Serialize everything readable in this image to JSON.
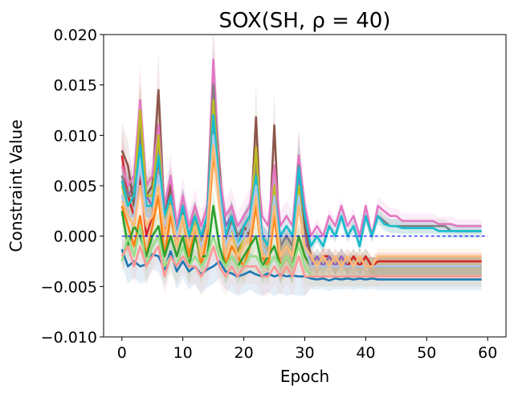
{
  "chart_data": {
    "type": "line",
    "title": "SOX(SH, ρ = 40)",
    "xlabel": "Epoch",
    "ylabel": "Constraint Value",
    "xlim": [
      -3,
      63
    ],
    "ylim": [
      -0.01,
      0.02
    ],
    "x_ticks": [
      0,
      10,
      20,
      30,
      40,
      50,
      60
    ],
    "y_ticks": [
      -0.01,
      -0.005,
      0.0,
      0.005,
      0.01,
      0.015,
      0.02
    ],
    "x_tick_labels": [
      "0",
      "10",
      "20",
      "30",
      "40",
      "50",
      "60"
    ],
    "y_tick_labels": [
      "−0.010",
      "−0.005",
      "0.000",
      "0.005",
      "0.010",
      "0.015",
      "0.020"
    ],
    "reference_line": {
      "y": 0.0,
      "style": "dashed",
      "color": "#0000ff"
    },
    "grid": false,
    "legend": "none",
    "epochs": {
      "start": 0,
      "end": 59
    },
    "series": [
      {
        "color": "#1f77b4",
        "values": [
          -0.0013,
          -0.003,
          -0.0025,
          -0.003,
          -0.0028,
          -0.0018,
          -0.002,
          -0.0033,
          -0.0015,
          -0.0035,
          -0.0025,
          -0.0035,
          -0.003,
          -0.0038,
          -0.0033,
          -0.003,
          -0.0025,
          -0.0035,
          -0.0037,
          -0.004,
          -0.0038,
          -0.0035,
          -0.0038,
          -0.004,
          -0.0037,
          -0.004,
          -0.0038,
          -0.004,
          -0.0039,
          -0.004,
          -0.004,
          -0.0042,
          -0.0043,
          -0.0042,
          -0.0044,
          -0.0042,
          -0.0043,
          -0.0042,
          -0.0043,
          -0.0042,
          -0.0043,
          -0.0042,
          -0.0043,
          -0.0043,
          -0.0043,
          -0.0043,
          -0.0043,
          -0.0043,
          -0.0043,
          -0.0043,
          -0.0043,
          -0.0043,
          -0.0043,
          -0.0043,
          -0.0043,
          -0.0043,
          -0.0043,
          -0.0043,
          -0.0043,
          -0.0043
        ]
      },
      {
        "color": "#ff7f0e",
        "values": [
          0.003,
          0.001,
          -0.001,
          0.002,
          -0.002,
          0.001,
          0.004,
          -0.002,
          0.002,
          -0.001,
          0.002,
          -0.002,
          0.001,
          -0.003,
          0.0,
          0.008,
          0.004,
          -0.003,
          -0.001,
          -0.002,
          -0.003,
          -0.001,
          0.003,
          -0.002,
          -0.003,
          0.002,
          -0.003,
          -0.002,
          -0.003,
          0.0,
          -0.002,
          -0.003,
          -0.003,
          -0.003,
          -0.003,
          -0.003,
          -0.003,
          -0.003,
          -0.003,
          -0.003,
          -0.003,
          -0.003,
          -0.003,
          -0.003,
          -0.003,
          -0.003,
          -0.003,
          -0.003,
          -0.003,
          -0.003,
          -0.003,
          -0.003,
          -0.003,
          -0.003,
          -0.003,
          -0.003,
          -0.003,
          -0.003,
          -0.003,
          -0.003
        ]
      },
      {
        "color": "#2ca02c",
        "values": [
          0.0025,
          -0.001,
          0.001,
          0.0,
          -0.002,
          0.0,
          0.001,
          -0.002,
          0.0,
          -0.002,
          0.0,
          -0.003,
          0.0,
          -0.002,
          -0.002,
          0.003,
          -0.001,
          -0.003,
          -0.002,
          -0.003,
          -0.002,
          -0.001,
          0.0,
          -0.003,
          -0.002,
          -0.001,
          -0.003,
          -0.002,
          -0.003,
          0.0,
          -0.002,
          -0.003,
          -0.002,
          -0.003,
          -0.002,
          -0.003,
          -0.002,
          -0.003,
          -0.002,
          -0.003,
          -0.002,
          -0.003,
          -0.003,
          -0.003,
          -0.003,
          -0.003,
          -0.003,
          -0.003,
          -0.003,
          -0.003,
          -0.003,
          -0.003,
          -0.003,
          -0.003,
          -0.003,
          -0.003,
          -0.003,
          -0.003,
          -0.003,
          -0.003
        ]
      },
      {
        "color": "#d62728",
        "values": [
          0.008,
          0.004,
          0.002,
          0.006,
          0.0,
          0.002,
          0.008,
          0.0,
          0.004,
          -0.001,
          0.003,
          0.0,
          0.002,
          -0.001,
          0.001,
          0.012,
          0.005,
          -0.001,
          0.002,
          -0.001,
          0.0,
          0.001,
          0.007,
          -0.001,
          -0.002,
          0.005,
          -0.002,
          -0.001,
          -0.002,
          0.005,
          -0.001,
          -0.002,
          -0.003,
          -0.002,
          -0.002,
          -0.003,
          -0.002,
          -0.003,
          -0.002,
          -0.003,
          -0.002,
          -0.003,
          -0.0025,
          -0.0025,
          -0.0025,
          -0.0025,
          -0.0025,
          -0.0025,
          -0.0025,
          -0.0025,
          -0.0025,
          -0.0025,
          -0.0025,
          -0.0025,
          -0.0025,
          -0.0025,
          -0.0025,
          -0.0025,
          -0.0025,
          -0.0025
        ]
      },
      {
        "color": "#9467bd",
        "values": [
          0.006,
          0.004,
          0.005,
          0.01,
          0.004,
          0.003,
          0.009,
          0.002,
          0.005,
          0.001,
          0.003,
          0.001,
          0.002,
          0.0,
          0.002,
          0.012,
          0.006,
          0.001,
          0.002,
          0.0,
          0.001,
          0.002,
          0.006,
          0.0,
          -0.001,
          0.004,
          -0.001,
          0.0,
          -0.001,
          0.006,
          0.0,
          -0.003,
          -0.002,
          -0.003,
          -0.002,
          -0.003,
          -0.002,
          -0.003,
          -0.003,
          -0.003,
          -0.003,
          -0.003,
          -0.003,
          -0.003,
          -0.003,
          -0.003,
          -0.003,
          -0.003,
          -0.003,
          -0.003,
          -0.003,
          -0.003,
          -0.003,
          -0.003,
          -0.003,
          -0.003,
          -0.003,
          -0.003,
          -0.003,
          -0.003
        ]
      },
      {
        "color": "#8c564b",
        "values": [
          0.0085,
          0.007,
          0.003,
          0.012,
          0.004,
          0.005,
          0.0145,
          0.002,
          0.005,
          0.0,
          0.003,
          -0.001,
          0.002,
          -0.001,
          0.002,
          0.016,
          0.007,
          -0.001,
          0.002,
          -0.002,
          0.001,
          0.0,
          0.0118,
          -0.001,
          -0.002,
          0.011,
          -0.002,
          -0.001,
          -0.002,
          0.008,
          0.001,
          -0.002,
          -0.003,
          -0.002,
          -0.003,
          -0.002,
          -0.003,
          -0.002,
          -0.003,
          -0.002,
          -0.003,
          -0.003,
          -0.003,
          -0.003,
          -0.003,
          -0.003,
          -0.003,
          -0.003,
          -0.003,
          -0.003,
          -0.003,
          -0.003,
          -0.003,
          -0.003,
          -0.003,
          -0.003,
          -0.003,
          -0.003,
          -0.003,
          -0.003
        ]
      },
      {
        "color": "#e377c2",
        "values": [
          0.007,
          0.005,
          0.006,
          0.0135,
          0.005,
          0.006,
          0.011,
          0.003,
          0.006,
          0.001,
          0.004,
          0.001,
          0.003,
          0.001,
          0.003,
          0.0175,
          0.006,
          0.002,
          0.003,
          0.001,
          0.002,
          0.003,
          0.008,
          0.002,
          0.001,
          0.007,
          0.001,
          0.002,
          0.001,
          0.008,
          0.003,
          0.0,
          0.001,
          0.0,
          0.002,
          0.001,
          0.003,
          0.001,
          0.002,
          0.0,
          0.003,
          0.0,
          0.003,
          0.0025,
          0.002,
          0.002,
          0.0015,
          0.0015,
          0.0015,
          0.0015,
          0.0015,
          0.0015,
          0.0012,
          0.0012,
          0.0012,
          0.001,
          0.001,
          0.001,
          0.001,
          0.001
        ]
      },
      {
        "color": "#7f7f7f",
        "values": [
          0.006,
          0.004,
          0.004,
          0.011,
          0.004,
          0.004,
          0.01,
          0.002,
          0.004,
          0.0,
          0.003,
          0.0,
          0.002,
          0.0,
          0.002,
          0.015,
          0.005,
          0.0,
          0.002,
          0.0,
          0.001,
          0.002,
          0.007,
          0.0,
          -0.001,
          0.005,
          -0.001,
          0.0,
          -0.001,
          0.007,
          0.002,
          -0.001,
          0.0,
          -0.001,
          0.001,
          0.0,
          0.002,
          0.0,
          0.001,
          -0.001,
          0.002,
          0.0,
          0.002,
          0.0015,
          0.001,
          0.001,
          0.001,
          0.001,
          0.001,
          0.001,
          0.001,
          0.001,
          0.001,
          0.001,
          0.0005,
          0.0005,
          0.0005,
          0.0005,
          0.0005,
          0.0005
        ]
      },
      {
        "color": "#bcbd22",
        "values": [
          0.005,
          0.003,
          0.004,
          0.0125,
          0.004,
          0.004,
          0.01,
          0.001,
          0.004,
          -0.001,
          0.002,
          -0.001,
          0.002,
          -0.001,
          0.001,
          0.0135,
          0.005,
          -0.001,
          0.001,
          -0.002,
          0.0,
          0.001,
          0.0088,
          -0.001,
          -0.002,
          0.005,
          -0.002,
          -0.001,
          -0.002,
          0.005,
          -0.001,
          -0.003,
          -0.003,
          -0.003,
          -0.003,
          -0.003,
          -0.003,
          -0.003,
          -0.003,
          -0.003,
          -0.003,
          -0.003,
          -0.003,
          -0.003,
          -0.003,
          -0.003,
          -0.003,
          -0.003,
          -0.003,
          -0.003,
          -0.003,
          -0.003,
          -0.003,
          -0.003,
          -0.003,
          -0.003,
          -0.003,
          -0.003,
          -0.003,
          -0.003
        ]
      },
      {
        "color": "#17becf",
        "values": [
          0.0055,
          0.003,
          0.004,
          0.009,
          0.003,
          0.003,
          0.008,
          0.002,
          0.004,
          0.0,
          0.003,
          0.0,
          0.002,
          0.0,
          0.002,
          0.012,
          0.005,
          0.0,
          0.002,
          -0.001,
          0.001,
          0.002,
          0.006,
          0.0,
          -0.001,
          0.004,
          0.0,
          0.001,
          0.0,
          0.0068,
          0.002,
          -0.001,
          0.0,
          -0.001,
          0.001,
          0.0,
          0.002,
          0.0,
          0.001,
          -0.001,
          0.002,
          0.0,
          0.002,
          0.0012,
          0.001,
          0.001,
          0.0008,
          0.0008,
          0.0008,
          0.0008,
          0.0008,
          0.0008,
          0.0005,
          0.0005,
          0.0005,
          0.0005,
          0.0005,
          0.0005,
          0.0005,
          0.0005
        ]
      },
      {
        "color": "#aec7e8",
        "values": [
          0.004,
          0.002,
          0.002,
          0.007,
          0.002,
          0.002,
          0.006,
          0.001,
          0.003,
          0.0,
          0.002,
          -0.001,
          0.001,
          -0.001,
          0.001,
          0.01,
          0.004,
          -0.001,
          0.001,
          -0.001,
          0.0,
          0.001,
          0.005,
          -0.001,
          -0.002,
          0.004,
          -0.002,
          -0.001,
          -0.002,
          0.004,
          -0.001,
          -0.003,
          -0.003,
          -0.003,
          -0.003,
          -0.003,
          -0.003,
          -0.003,
          -0.003,
          -0.003,
          -0.003,
          -0.003,
          -0.003,
          -0.003,
          -0.003,
          -0.003,
          -0.003,
          -0.003,
          -0.003,
          -0.003,
          -0.003,
          -0.003,
          -0.003,
          -0.003,
          -0.003,
          -0.003,
          -0.003,
          -0.003,
          -0.003,
          -0.003
        ]
      },
      {
        "color": "#ffbb78",
        "values": [
          0.0035,
          0.002,
          0.001,
          0.005,
          0.001,
          0.002,
          0.005,
          0.0,
          0.003,
          -0.001,
          0.002,
          -0.001,
          0.001,
          -0.002,
          0.001,
          0.009,
          0.003,
          -0.002,
          0.0,
          -0.002,
          -0.001,
          0.0,
          0.004,
          -0.002,
          -0.002,
          0.003,
          -0.002,
          -0.001,
          -0.002,
          0.003,
          -0.001,
          -0.002,
          -0.003,
          -0.002,
          -0.003,
          -0.002,
          -0.003,
          -0.002,
          -0.003,
          -0.002,
          -0.003,
          -0.003,
          -0.002,
          -0.002,
          -0.002,
          -0.002,
          -0.002,
          -0.002,
          -0.002,
          -0.002,
          -0.002,
          -0.002,
          -0.002,
          -0.002,
          -0.002,
          -0.002,
          -0.002,
          -0.002,
          -0.002,
          -0.002
        ]
      },
      {
        "color": "#98df8a",
        "values": [
          -0.0025,
          0.0,
          -0.002,
          0.001,
          -0.003,
          -0.001,
          0.0,
          -0.003,
          -0.002,
          -0.003,
          -0.001,
          -0.003,
          -0.002,
          -0.003,
          -0.002,
          0.0,
          -0.002,
          -0.003,
          -0.002,
          -0.003,
          -0.003,
          -0.002,
          -0.002,
          -0.003,
          -0.003,
          -0.002,
          -0.003,
          -0.002,
          -0.003,
          -0.001,
          -0.003,
          -0.004,
          -0.004,
          -0.004,
          -0.004,
          -0.004,
          -0.004,
          -0.004,
          -0.004,
          -0.004,
          -0.004,
          -0.004,
          -0.004,
          -0.004,
          -0.004,
          -0.004,
          -0.004,
          -0.004,
          -0.004,
          -0.004,
          -0.004,
          -0.004,
          -0.004,
          -0.004,
          -0.004,
          -0.004,
          -0.004,
          -0.004,
          -0.004,
          -0.004
        ]
      },
      {
        "color": "#ff9896",
        "values": [
          -0.002,
          -0.001,
          -0.003,
          -0.001,
          -0.003,
          -0.002,
          -0.001,
          -0.004,
          -0.002,
          -0.003,
          -0.002,
          -0.003,
          -0.003,
          -0.004,
          -0.003,
          -0.001,
          -0.003,
          -0.004,
          -0.003,
          -0.004,
          -0.003,
          -0.003,
          -0.003,
          -0.004,
          -0.004,
          -0.003,
          -0.004,
          -0.003,
          -0.004,
          -0.002,
          -0.004,
          -0.004,
          -0.004,
          -0.004,
          -0.004,
          -0.004,
          -0.004,
          -0.004,
          -0.004,
          -0.004,
          -0.004,
          -0.004,
          -0.004,
          -0.004,
          -0.004,
          -0.004,
          -0.004,
          -0.004,
          -0.004,
          -0.004,
          -0.004,
          -0.004,
          -0.004,
          -0.004,
          -0.004,
          -0.004,
          -0.004,
          -0.004,
          -0.004,
          -0.004
        ]
      }
    ]
  }
}
